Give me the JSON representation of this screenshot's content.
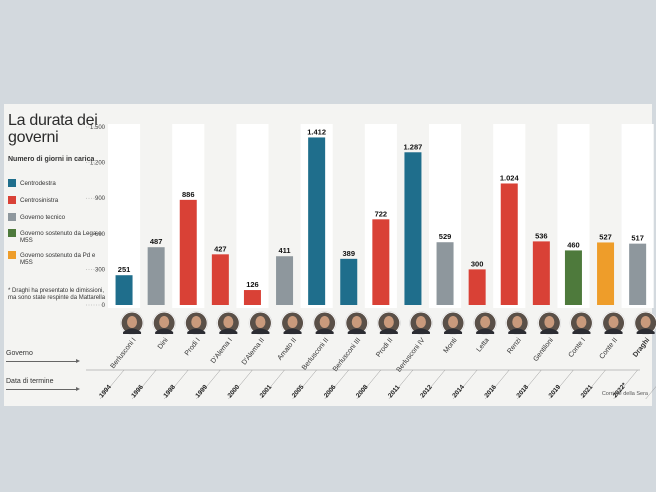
{
  "title": "La durata dei governi",
  "legend": {
    "title": "Numero di giorni in carica",
    "items": [
      {
        "label": "Centrodestra",
        "color": "#1f6e8c"
      },
      {
        "label": "Centrosinistra",
        "color": "#d94136"
      },
      {
        "label": "Governo tecnico",
        "color": "#8e979d"
      },
      {
        "label": "Governo sostenuto da Lega e M5S",
        "color": "#4e7a3c"
      },
      {
        "label": "Governo sostenuto da Pd e M5S",
        "color": "#ee9d2a"
      }
    ]
  },
  "footnote": "* Draghi ha presentato le dimissioni, ma sono state respinte da Mattarella",
  "row_labels": {
    "government": "Governo",
    "date": "Data di termine"
  },
  "source": "Corriere della Sera",
  "chart_data": {
    "type": "bar",
    "title": "La durata dei governi",
    "ylabel": "Numero di giorni in carica",
    "ylim": [
      0,
      1500
    ],
    "yticks": [
      0,
      300,
      600,
      900,
      1200,
      1500
    ],
    "ytick_labels": [
      "0",
      "300",
      "600",
      "900",
      "1.200",
      "1.500"
    ],
    "categories": [
      "Berlusconi I",
      "Dini",
      "Prodi I",
      "D'Alema I",
      "D'Alema II",
      "Amato II",
      "Berlusconi II",
      "Berlusconi III",
      "Prodi II",
      "Berlusconi IV",
      "Monti",
      "Letta",
      "Renzi",
      "Gentiloni",
      "Conte I",
      "Conte II",
      "Draghi"
    ],
    "values": [
      251,
      487,
      886,
      427,
      126,
      411,
      1412,
      389,
      722,
      1287,
      529,
      300,
      1024,
      536,
      460,
      527,
      517
    ],
    "value_labels": [
      "251",
      "487",
      "886",
      "427",
      "126",
      "411",
      "1.412",
      "389",
      "722",
      "1.287",
      "529",
      "300",
      "1.024",
      "536",
      "460",
      "527",
      "517"
    ],
    "colors": [
      "#1f6e8c",
      "#8e979d",
      "#d94136",
      "#d94136",
      "#d94136",
      "#8e979d",
      "#1f6e8c",
      "#1f6e8c",
      "#d94136",
      "#1f6e8c",
      "#8e979d",
      "#d94136",
      "#d94136",
      "#d94136",
      "#4e7a3c",
      "#ee9d2a",
      "#8e979d"
    ],
    "end_years": [
      "1994",
      "1996",
      "1998",
      "1999",
      "2000",
      "2001",
      "2005",
      "2006",
      "2008",
      "2011",
      "2012",
      "2014",
      "2016",
      "2018",
      "2019",
      "2021",
      "2022*"
    ],
    "grid": "alternating vertical bands"
  }
}
